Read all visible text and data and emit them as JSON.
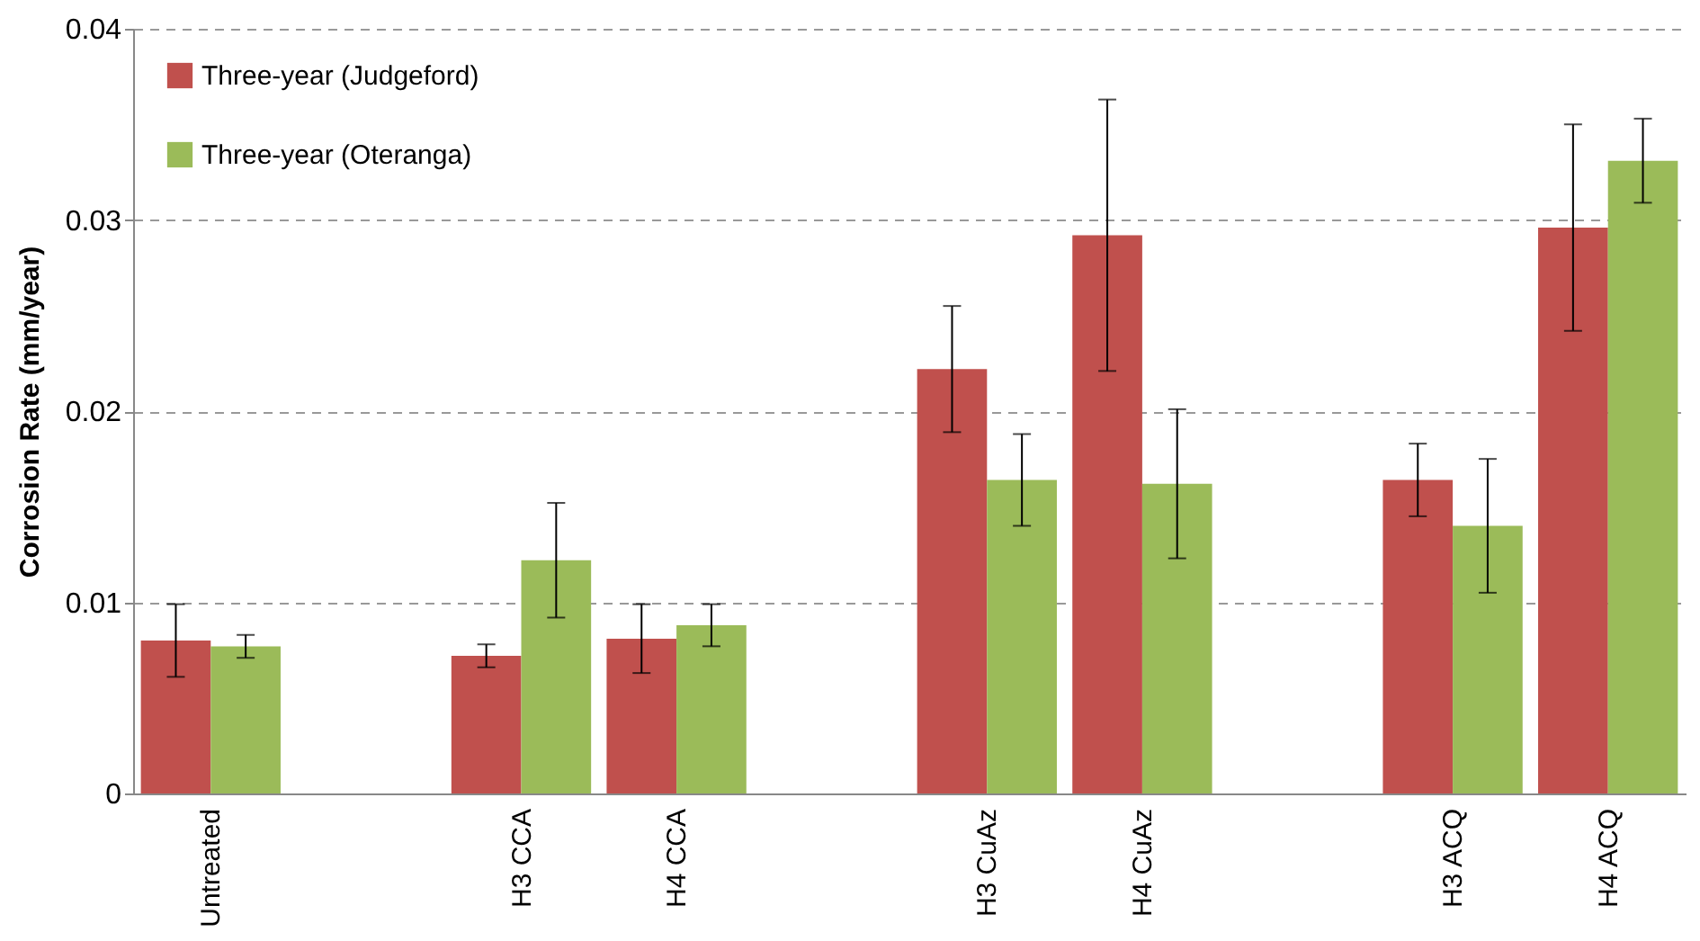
{
  "chart_data": {
    "type": "bar",
    "ylabel": "Corrosion Rate (mm/year)",
    "categories": [
      "Untreated",
      null,
      "H3 CCA",
      "H4 CCA",
      null,
      "H3 CuAz",
      "H4 CuAz",
      null,
      "H3 ACQ",
      "H4 ACQ"
    ],
    "series": [
      {
        "name": "Three-year (Judgeford)",
        "color": "#c0504d",
        "values": [
          0.008,
          null,
          0.0072,
          0.0081,
          null,
          0.0222,
          0.0292,
          null,
          0.0164,
          0.0296
        ],
        "errors": [
          0.0019,
          null,
          0.0006,
          0.0018,
          null,
          0.0033,
          0.0071,
          null,
          0.0019,
          0.0054
        ]
      },
      {
        "name": "Three-year (Oteranga)",
        "color": "#9bbb59",
        "values": [
          0.0077,
          null,
          0.0122,
          0.0088,
          null,
          0.0164,
          0.0162,
          null,
          0.014,
          0.0331
        ],
        "errors": [
          0.0006,
          null,
          0.003,
          0.0011,
          null,
          0.0024,
          0.0039,
          null,
          0.0035,
          0.0022
        ]
      }
    ],
    "ylim": [
      0,
      0.04
    ],
    "yticks": [
      0,
      0.01,
      0.02,
      0.03,
      0.04
    ],
    "grid": "y",
    "legend": "top left"
  }
}
